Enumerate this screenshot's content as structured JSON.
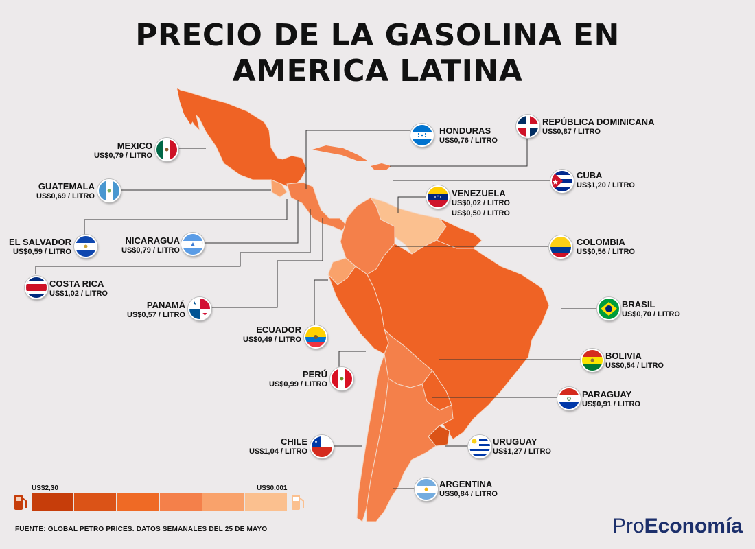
{
  "title": [
    "PRECIO DE LA GASOLINA EN",
    "AMERICA LATINA"
  ],
  "countries": [
    {
      "id": "mexico",
      "name": "MEXICO",
      "price": "US$0,79 / LITRO"
    },
    {
      "id": "guatemala",
      "name": "GUATEMALA",
      "price": "US$0,69 / LITRO"
    },
    {
      "id": "el-salvador",
      "name": "EL SALVADOR",
      "price": "US$0,59 / LITRO"
    },
    {
      "id": "nicaragua",
      "name": "NICARAGUA",
      "price": "US$0,79 / LITRO"
    },
    {
      "id": "costa-rica",
      "name": "COSTA RICA",
      "price": "US$1,02 / LITRO"
    },
    {
      "id": "panama",
      "name": "PANAMÁ",
      "price": "US$0,57 / LITRO"
    },
    {
      "id": "ecuador",
      "name": "ECUADOR",
      "price": "US$0,49 / LITRO"
    },
    {
      "id": "peru",
      "name": "PERÚ",
      "price": "US$0,99 / LITRO"
    },
    {
      "id": "chile",
      "name": "CHILE",
      "price": "US$1,04 / LITRO"
    },
    {
      "id": "honduras",
      "name": "HONDURAS",
      "price": "US$0,76 / LITRO"
    },
    {
      "id": "republica-dominicana",
      "name": "REPÚBLICA DOMINICANA",
      "price": "US$0,87 / LITRO"
    },
    {
      "id": "cuba",
      "name": "CUBA",
      "price": "US$1,20 / LITRO"
    },
    {
      "id": "venezuela",
      "name": "VENEZUELA",
      "price": "US$0,02 / LITRO",
      "price2": "US$0,50 / LITRO"
    },
    {
      "id": "colombia",
      "name": "COLOMBIA",
      "price": "US$0,56 / LITRO"
    },
    {
      "id": "brasil",
      "name": "BRASIL",
      "price": "US$0,70 / LITRO"
    },
    {
      "id": "bolivia",
      "name": "BOLIVIA",
      "price": "US$0,54 / LITRO"
    },
    {
      "id": "paraguay",
      "name": "PARAGUAY",
      "price": "US$0,91 / LITRO"
    },
    {
      "id": "uruguay",
      "name": "URUGUAY",
      "price": "US$1,27 / LITRO"
    },
    {
      "id": "argentina",
      "name": "ARGENTINA",
      "price": "US$0,84 / LITRO"
    }
  ],
  "legend": {
    "high_label": "US$2,30",
    "low_label": "US$0,001",
    "colors": [
      "#c63d0a",
      "#db5317",
      "#ef6a25",
      "#f4804a",
      "#f9a26b",
      "#fbc08f"
    ]
  },
  "source": "FUENTE: GLOBAL PETRO PRICES. DATOS SEMANALES DEL 25 DE MAYO",
  "brand": {
    "pro": "Pro",
    "economia": "Economía",
    "color": "#1c2f6b"
  }
}
